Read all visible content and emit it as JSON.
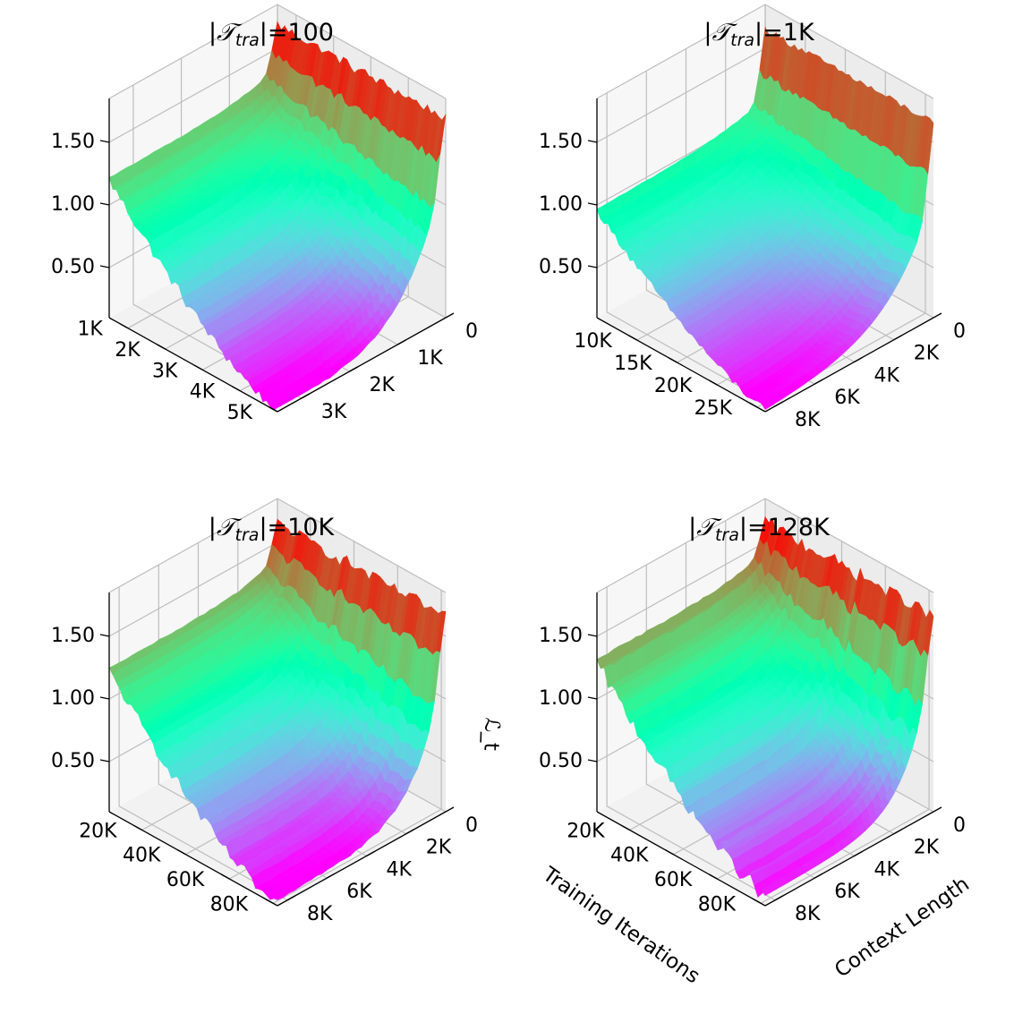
{
  "figure": {
    "shared_labels": {
      "x_axis": "Training Iterations",
      "y_axis": "Context Length",
      "z_axis": "ℒ_t"
    },
    "colormap": "rainbow"
  },
  "chart_data": [
    {
      "type": "surface",
      "title_prefix": "|",
      "title_symbol": "𝒯",
      "title_sub": "tra",
      "title_suffix": "|=100",
      "x": {
        "label": "Training Iterations",
        "range": [
          500,
          5000
        ],
        "ticks": [
          1000,
          2000,
          3000,
          4000,
          5000
        ],
        "tick_labels": [
          "1K",
          "2K",
          "3K",
          "4K",
          "5K"
        ]
      },
      "y": {
        "label": "Context Length",
        "range": [
          0,
          3500
        ],
        "ticks": [
          0,
          1000,
          2000,
          3000
        ],
        "tick_labels": [
          "0",
          "1K",
          "2K",
          "3K"
        ]
      },
      "z": {
        "label": "ℒ_t",
        "range": [
          0.1,
          1.85
        ],
        "ticks": [
          0.5,
          1.0,
          1.5
        ],
        "tick_labels": [
          "0.50",
          "1.00",
          "1.50"
        ]
      },
      "surface": {
        "z_start": 1.2,
        "z_end_low": 0.1,
        "z_end_high": 1.75,
        "decay": 1.6,
        "knee": 0.78,
        "noise": 0.05
      }
    },
    {
      "type": "surface",
      "title_prefix": "|",
      "title_symbol": "𝒯",
      "title_sub": "tra",
      "title_suffix": "|=1K",
      "x": {
        "label": "Training Iterations",
        "range": [
          5000,
          26000
        ],
        "ticks": [
          10000,
          15000,
          20000,
          25000
        ],
        "tick_labels": [
          "10K",
          "15K",
          "20K",
          "25K"
        ]
      },
      "y": {
        "label": "Context Length",
        "range": [
          0,
          8500
        ],
        "ticks": [
          0,
          2000,
          4000,
          6000,
          8000
        ],
        "tick_labels": [
          "0",
          "2K",
          "4K",
          "6K",
          "8K"
        ]
      },
      "z": {
        "label": "ℒ_t",
        "range": [
          0.1,
          1.85
        ],
        "ticks": [
          0.5,
          1.0,
          1.5
        ],
        "tick_labels": [
          "0.50",
          "1.00",
          "1.50"
        ]
      },
      "surface": {
        "z_start": 0.95,
        "z_end_low": 0.1,
        "z_end_high": 1.75,
        "decay": 1.25,
        "knee": 0.86,
        "noise": 0.035
      }
    },
    {
      "type": "surface",
      "title_prefix": "|",
      "title_symbol": "𝒯",
      "title_sub": "tra",
      "title_suffix": "|=10K",
      "x": {
        "label": "Training Iterations",
        "range": [
          5000,
          82000
        ],
        "ticks": [
          20000,
          40000,
          60000,
          80000
        ],
        "tick_labels": [
          "20K",
          "40K",
          "60K",
          "80K"
        ]
      },
      "y": {
        "label": "Context Length",
        "range": [
          0,
          8500
        ],
        "ticks": [
          0,
          2000,
          4000,
          6000,
          8000
        ],
        "tick_labels": [
          "0",
          "2K",
          "4K",
          "6K",
          "8K"
        ]
      },
      "z": {
        "label": "ℒ_t",
        "range": [
          0.1,
          1.85
        ],
        "ticks": [
          0.5,
          1.0,
          1.5
        ],
        "tick_labels": [
          "0.50",
          "1.00",
          "1.50"
        ]
      },
      "surface": {
        "z_start": 1.22,
        "z_end_low": 0.1,
        "z_end_high": 1.7,
        "decay": 2.0,
        "knee": 0.8,
        "noise": 0.06
      }
    },
    {
      "type": "surface",
      "title_prefix": "|",
      "title_symbol": "𝒯",
      "title_sub": "tra",
      "title_suffix": "|=128K",
      "x": {
        "label": "Training Iterations",
        "range": [
          5000,
          82000
        ],
        "ticks": [
          20000,
          40000,
          60000,
          80000
        ],
        "tick_labels": [
          "20K",
          "40K",
          "60K",
          "80K"
        ]
      },
      "y": {
        "label": "Context Length",
        "range": [
          0,
          8500
        ],
        "ticks": [
          0,
          2000,
          4000,
          6000,
          8000
        ],
        "tick_labels": [
          "0",
          "2K",
          "4K",
          "6K",
          "8K"
        ]
      },
      "z": {
        "label": "ℒ_t",
        "range": [
          0.1,
          1.85
        ],
        "ticks": [
          0.5,
          1.0,
          1.5
        ],
        "tick_labels": [
          "0.50",
          "1.00",
          "1.50"
        ]
      },
      "surface": {
        "z_start": 1.28,
        "z_end_low": 0.18,
        "z_end_high": 1.7,
        "decay": 2.2,
        "knee": 0.8,
        "noise": 0.07
      }
    }
  ]
}
